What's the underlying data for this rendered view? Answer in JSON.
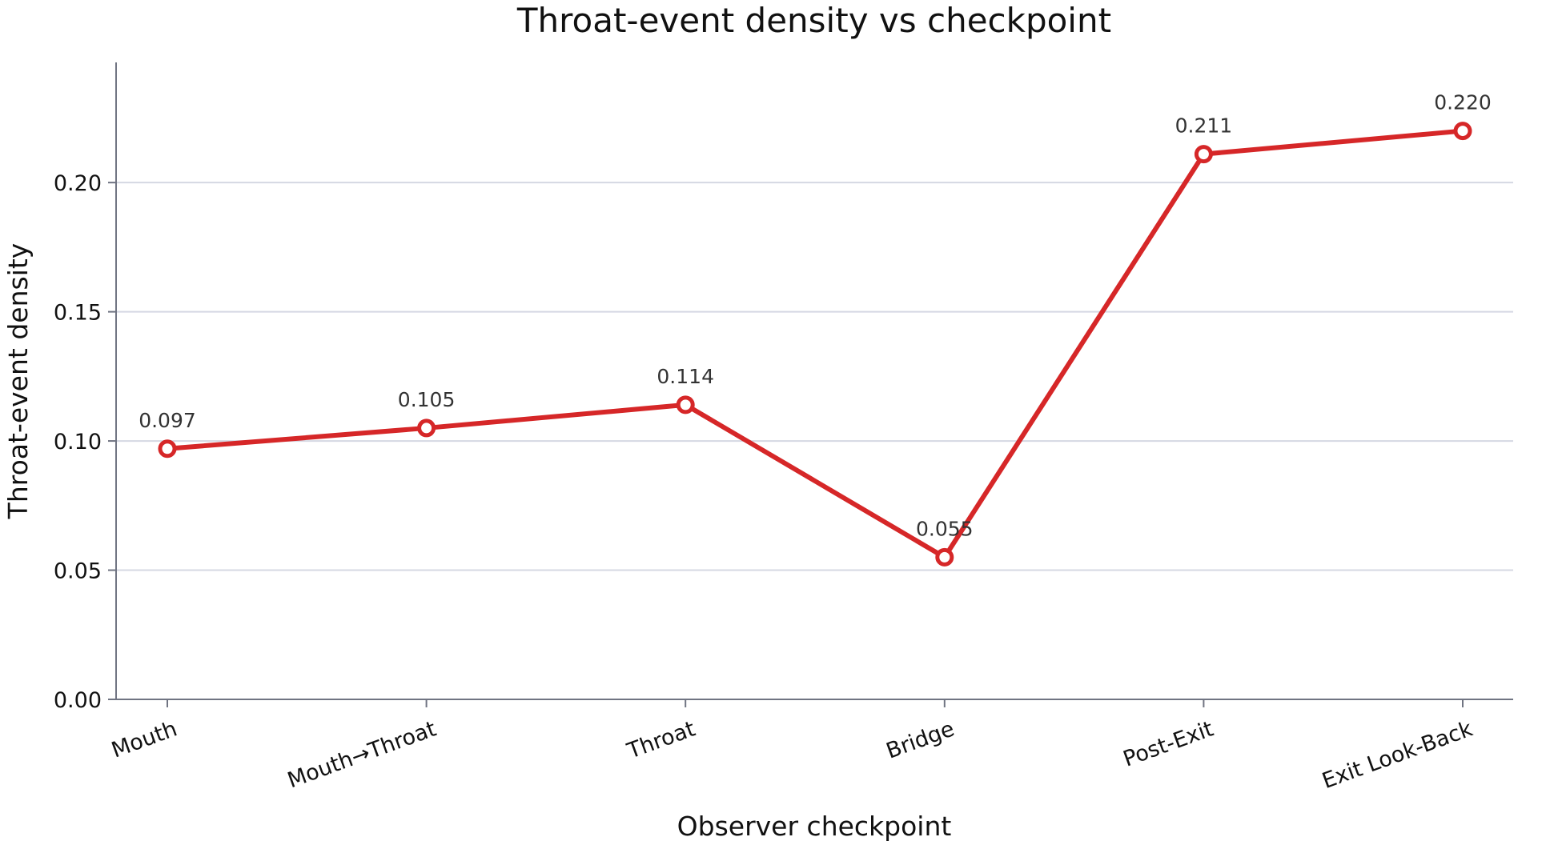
{
  "chart_data": {
    "type": "line",
    "title": "Throat-event density vs checkpoint",
    "xlabel": "Observer checkpoint",
    "ylabel": "Throat-event density",
    "categories": [
      "Mouth",
      "Mouth→Throat",
      "Throat",
      "Bridge",
      "Post-Exit",
      "Exit Look-Back"
    ],
    "series": [
      {
        "values": [
          0.097,
          0.105,
          0.114,
          0.055,
          0.211,
          0.22
        ],
        "labels": [
          "0.097",
          "0.105",
          "0.114",
          "0.055",
          "0.211",
          "0.220"
        ],
        "color": "#d62728"
      }
    ],
    "ylim": [
      0,
      0.2465
    ],
    "yticks": [
      "0.00",
      "0.05",
      "0.10",
      "0.15",
      "0.20"
    ],
    "grid": "horizontal",
    "legend": "none"
  }
}
